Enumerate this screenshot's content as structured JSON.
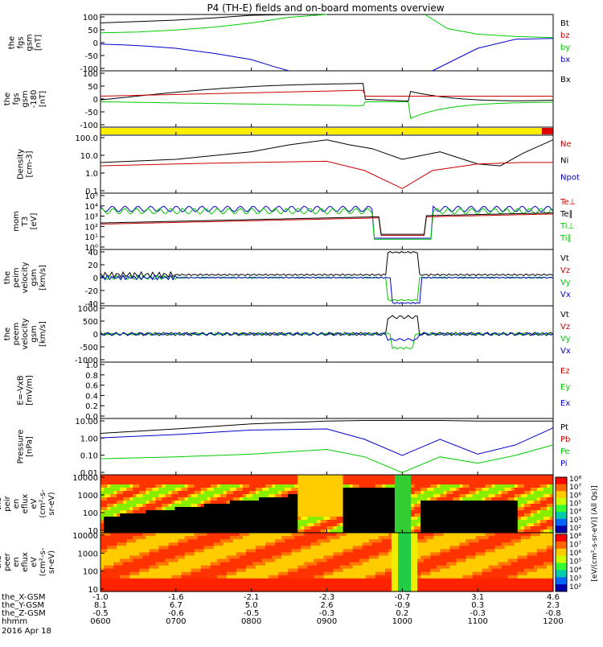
{
  "title": "P4 (TH-E) fields and on-board moments overview",
  "panels": [
    {
      "id": "fgs",
      "ylabel": [
        "the",
        "fgs",
        "gsm",
        "[nT]"
      ],
      "ticks": [
        "100",
        "50",
        "0",
        "-50",
        "-100"
      ],
      "legend": [
        {
          "t": "Bt",
          "c": "#000000"
        },
        {
          "t": "bz",
          "c": "#cc0000"
        },
        {
          "t": "by",
          "c": "#00cc00"
        },
        {
          "t": "bx",
          "c": "#0000cc"
        }
      ]
    },
    {
      "id": "fgs_dsl",
      "ylabel": [
        "the",
        "fgs",
        "gsm",
        "-180",
        "[nT]"
      ],
      "ticks": [
        "100",
        "50",
        "0",
        "-50",
        "-100"
      ],
      "legend": [
        {
          "t": "Bx",
          "c": "#000000"
        }
      ]
    },
    {
      "id": "density",
      "ylabel": [
        "Density",
        "[cm-3]"
      ],
      "ticks": [
        "100.0",
        "10.0",
        "1.0",
        "0.1"
      ],
      "legend": [
        {
          "t": "Ne",
          "c": "#cc0000"
        },
        {
          "t": "Ni",
          "c": "#000000"
        },
        {
          "t": "Npot",
          "c": "#0000cc"
        }
      ]
    },
    {
      "id": "temp",
      "ylabel": [
        "mom",
        "T3",
        "[eV]"
      ],
      "ticks": [
        "10⁵",
        "10⁴",
        "10³",
        "10²",
        "10¹",
        "10⁰"
      ],
      "legend": [
        {
          "t": "Te⊥",
          "c": "#cc0000"
        },
        {
          "t": "Te∥",
          "c": "#000000"
        },
        {
          "t": "Ti⊥",
          "c": "#00cc00"
        },
        {
          "t": "Ti∥",
          "c": "#00cc00"
        }
      ]
    },
    {
      "id": "peim",
      "ylabel": [
        "the",
        "peim",
        "velocity",
        "gsm",
        "[km/s]"
      ],
      "ticks": [
        "40",
        "20",
        "0",
        "-20",
        "-40"
      ],
      "legend": [
        {
          "t": "Vt",
          "c": "#000000"
        },
        {
          "t": "Vz",
          "c": "#cc0000"
        },
        {
          "t": "Vy",
          "c": "#00cc00"
        },
        {
          "t": "Vx",
          "c": "#0000cc"
        }
      ]
    },
    {
      "id": "peem",
      "ylabel": [
        "the",
        "peem",
        "velocity",
        "gsm",
        "[km/s]"
      ],
      "ticks": [
        "1000",
        "500",
        "0",
        "-500",
        "-1000"
      ],
      "legend": [
        {
          "t": "Vt",
          "c": "#000000"
        },
        {
          "t": "Vz",
          "c": "#cc0000"
        },
        {
          "t": "Vy",
          "c": "#00cc00"
        },
        {
          "t": "Vx",
          "c": "#0000cc"
        }
      ]
    },
    {
      "id": "efield",
      "ylabel": [
        "E=-VxB",
        "[mV/m]"
      ],
      "ticks": [
        "1.0",
        "0.8",
        "0.6",
        "0.4",
        "0.2",
        "0.0"
      ],
      "legend": [
        {
          "t": "Ez",
          "c": "#cc0000"
        },
        {
          "t": "Ey",
          "c": "#00cc00"
        },
        {
          "t": "Ex",
          "c": "#0000cc"
        }
      ]
    },
    {
      "id": "pressure",
      "ylabel": [
        "Pressure",
        "[nPa]"
      ],
      "ticks": [
        "10.00",
        "1.00",
        "0.10",
        "0.01"
      ],
      "legend": [
        {
          "t": "Pt",
          "c": "#000000"
        },
        {
          "t": "Pb",
          "c": "#cc0000"
        },
        {
          "t": "Pe",
          "c": "#00cc00"
        },
        {
          "t": "Pi",
          "c": "#0000cc"
        }
      ]
    },
    {
      "id": "peir",
      "ylabel": [
        "the",
        "peir",
        "en",
        "eflux",
        "eV",
        "(cm²-s-",
        "sr-eV)"
      ],
      "ticks": [
        "10000",
        "1000",
        "100",
        "10"
      ],
      "legend": []
    },
    {
      "id": "peer",
      "ylabel": [
        "the",
        "peer",
        "en",
        "eflux",
        "eV",
        "(cm²-s-",
        "sr-eV)"
      ],
      "ticks": [
        "10000",
        "1000",
        "100",
        "10"
      ],
      "legend": []
    }
  ],
  "colorbar": {
    "ticks": [
      "10⁸",
      "10⁷",
      "10⁶",
      "10⁵",
      "10⁴",
      "10³",
      "10²"
    ],
    "ticks2": [
      "10⁸",
      "10⁷",
      "10⁶",
      "10⁵",
      "10⁴",
      "10³",
      "10²"
    ],
    "label": "[eV/(cm²-s-sr-eV)] (All Qs)]"
  },
  "xaxis": {
    "rows": [
      {
        "label": "the_X-GSM",
        "values": [
          "-1.0",
          "-1.6",
          "-2.1",
          "-2.3",
          "-0.7",
          "3.1",
          "4.6"
        ]
      },
      {
        "label": "the_Y-GSM",
        "values": [
          "8.1",
          "6.7",
          "5.0",
          "2.6",
          "-0.9",
          "0.3",
          "2.3"
        ]
      },
      {
        "label": "the_Z-GSM",
        "values": [
          "-0.5",
          "-0.6",
          "-0.5",
          "-0.3",
          "0.2",
          "-0.3",
          "-0.8"
        ]
      },
      {
        "label": "hhmm",
        "values": [
          "0600",
          "0700",
          "0800",
          "0900",
          "1000",
          "1100",
          "1200"
        ]
      }
    ],
    "date": "2016 Apr 18"
  },
  "chart_data": {
    "type": "line",
    "title": "P4 (TH-E) fields and on-board moments overview",
    "x_time_ticks": [
      "0600",
      "0700",
      "0800",
      "0900",
      "1000",
      "1100",
      "1200"
    ],
    "x_time_hours": [
      6,
      7,
      8,
      9,
      10,
      11,
      12
    ],
    "series": [
      {
        "panel": "fgs",
        "name": "Bt",
        "x": [
          6,
          6.5,
          7,
          7.5,
          8,
          8.5,
          9,
          9.5
        ],
        "y": [
          70,
          75,
          80,
          88,
          97,
          110,
          130,
          160
        ]
      },
      {
        "panel": "fgs",
        "name": "by",
        "x": [
          6,
          6.5,
          7,
          7.5,
          8,
          8.5,
          9
        ],
        "y": [
          35,
          38,
          45,
          55,
          70,
          90,
          115
        ]
      },
      {
        "panel": "fgs",
        "name": "bx",
        "x": [
          6,
          6.3,
          6.6,
          7,
          7.5,
          8,
          8.3,
          8.5
        ],
        "y": [
          -5,
          -8,
          -12,
          -20,
          -38,
          -60,
          -85,
          -100
        ]
      },
      {
        "panel": "fgs",
        "name": "by",
        "x": [
          10.3,
          10.6,
          11,
          11.5,
          12
        ],
        "y": [
          100,
          50,
          30,
          22,
          18
        ]
      },
      {
        "panel": "fgs",
        "name": "bx",
        "x": [
          10.4,
          10.7,
          11,
          11.5,
          12
        ],
        "y": [
          -100,
          -60,
          -20,
          12,
          15
        ]
      },
      {
        "panel": "density",
        "name": "Ni",
        "x": [
          6,
          7,
          8,
          8.5,
          9,
          9.3,
          9.6,
          10,
          10.5,
          11,
          11.3,
          11.6,
          12
        ],
        "y": [
          5,
          8,
          25,
          70,
          150,
          70,
          40,
          8,
          25,
          4,
          3,
          20,
          150
        ]
      },
      {
        "panel": "density",
        "name": "Ne",
        "x": [
          6,
          7,
          8,
          9,
          9.5,
          10,
          10.4,
          11,
          11.6,
          12
        ],
        "y": [
          3,
          4,
          5,
          6,
          1.5,
          0.1,
          1.5,
          4,
          5,
          5
        ]
      },
      {
        "panel": "pressure",
        "name": "Pt",
        "x": [
          6,
          7,
          8,
          9,
          9.5,
          10,
          10.5,
          11,
          12
        ],
        "y": [
          3,
          6,
          13,
          20,
          22,
          22,
          22,
          20,
          20
        ]
      },
      {
        "panel": "pressure",
        "name": "Pi",
        "x": [
          6,
          7,
          8,
          9,
          9.5,
          10,
          10.5,
          11,
          11.5,
          12
        ],
        "y": [
          1.5,
          2.5,
          5,
          6,
          1.2,
          0.1,
          1.2,
          0.12,
          0.5,
          7
        ]
      },
      {
        "panel": "pressure",
        "name": "Pe",
        "x": [
          6,
          7,
          8,
          9,
          9.5,
          10,
          10.5,
          11,
          11.5,
          12
        ],
        "y": [
          0.06,
          0.08,
          0.12,
          0.25,
          0.08,
          0.007,
          0.08,
          0.03,
          0.1,
          0.5
        ]
      }
    ]
  }
}
